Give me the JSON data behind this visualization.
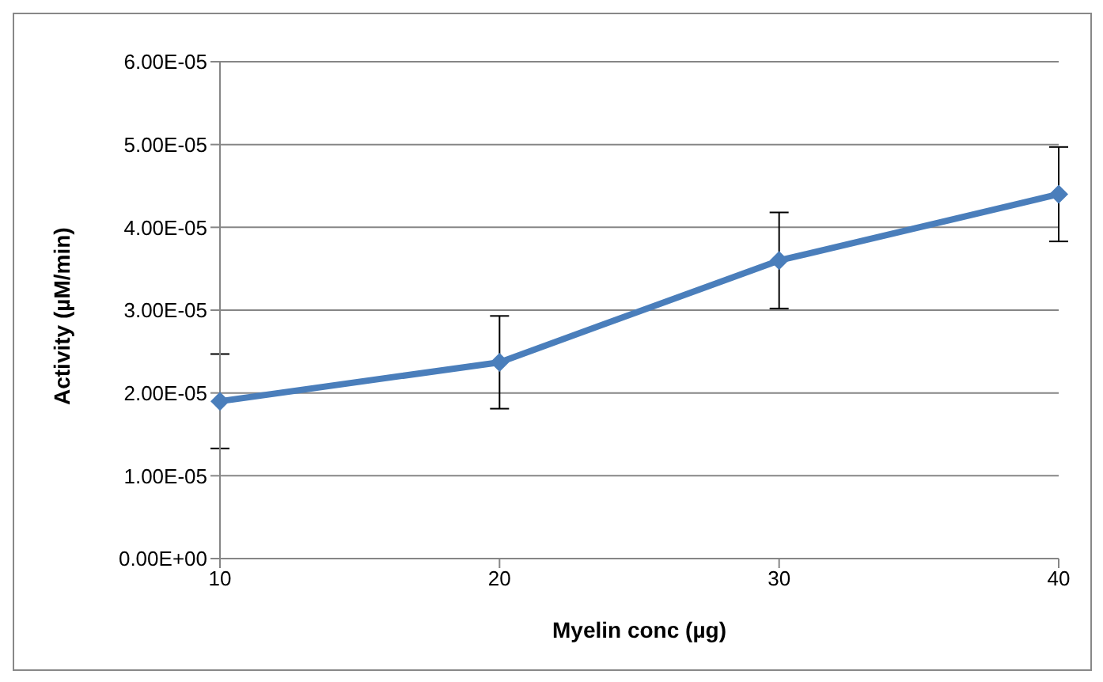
{
  "chart_data": {
    "type": "line",
    "xlabel": "Myelin conc (µg)",
    "ylabel": "Activity (µM/min)",
    "categories": [
      "10",
      "20",
      "30",
      "40"
    ],
    "series": [
      {
        "color": "#4a7ebb",
        "values": [
          1.9e-05,
          2.37e-05,
          3.6e-05,
          4.4e-05
        ],
        "errors": [
          5.7e-06,
          5.6e-06,
          5.8e-06,
          5.7e-06
        ]
      }
    ],
    "ylim": [
      0,
      6e-05
    ],
    "yticks": [
      {
        "value": 0,
        "label": "0.00E+00"
      },
      {
        "value": 1e-05,
        "label": "1.00E-05"
      },
      {
        "value": 2e-05,
        "label": "2.00E-05"
      },
      {
        "value": 3e-05,
        "label": "3.00E-05"
      },
      {
        "value": 4e-05,
        "label": "4.00E-05"
      },
      {
        "value": 5e-05,
        "label": "5.00E-05"
      },
      {
        "value": 6e-05,
        "label": "6.00E-05"
      }
    ],
    "grid": "y",
    "legend": false,
    "marker": "diamond",
    "line_style": "solid"
  }
}
